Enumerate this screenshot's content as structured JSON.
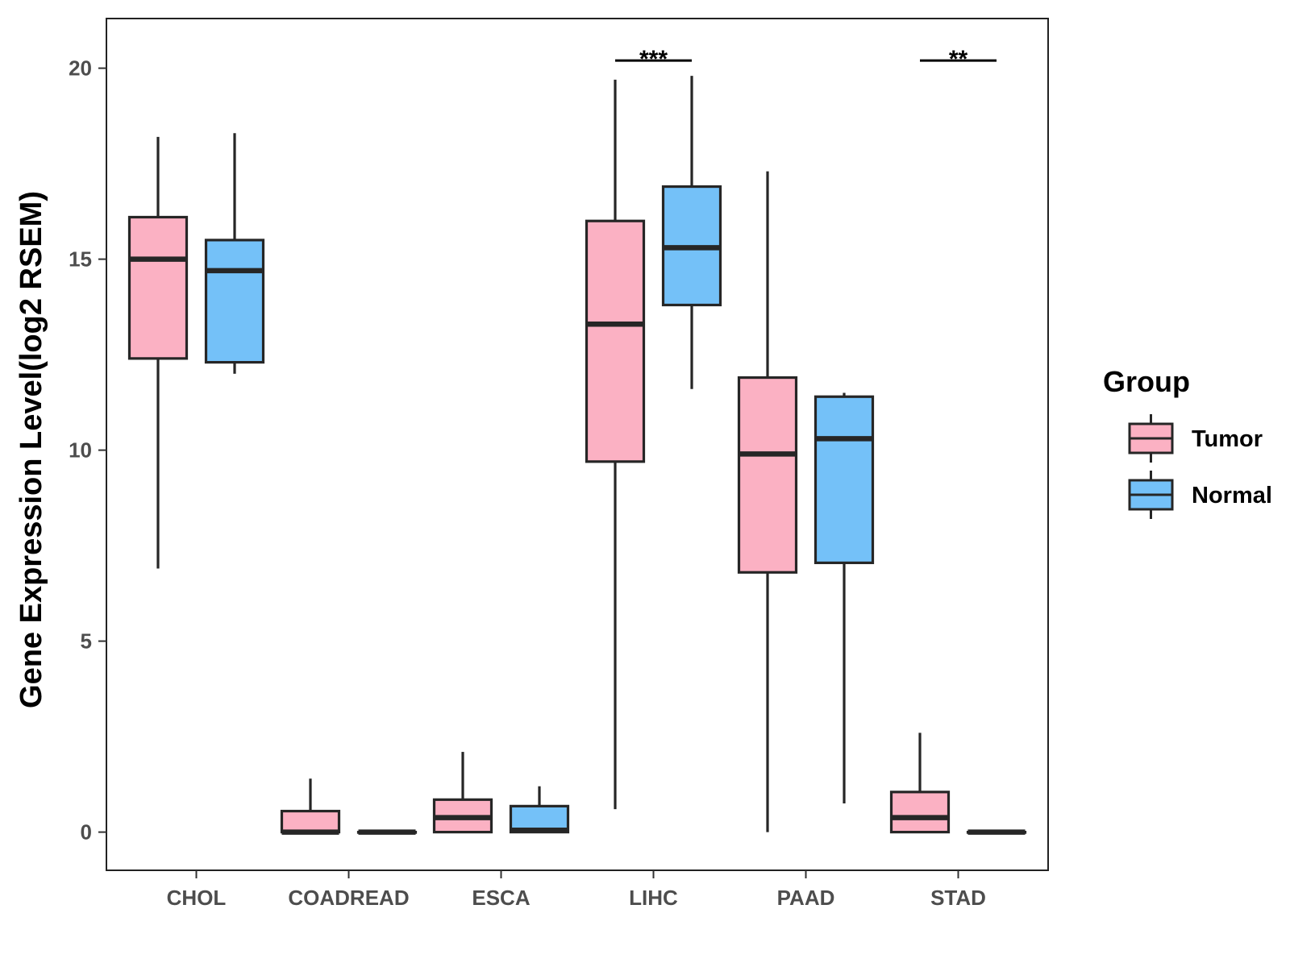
{
  "chart_data": {
    "type": "box",
    "ylabel": "Gene Expression Level(log2 RSEM)",
    "xlabel": "",
    "ylim": [
      -1,
      21.3
    ],
    "yticks": [
      0,
      5,
      10,
      15,
      20
    ],
    "categories": [
      "CHOL",
      "COADREAD",
      "ESCA",
      "LIHC",
      "PAAD",
      "STAD"
    ],
    "legend": {
      "title": "Group",
      "position": "right",
      "entries": [
        {
          "label": "Tumor",
          "color": "#FBB1C3"
        },
        {
          "label": "Normal",
          "color": "#74C1F8"
        }
      ]
    },
    "series": [
      {
        "name": "Tumor",
        "color": "#FBB1C3",
        "boxes": [
          {
            "category": "CHOL",
            "min": 6.9,
            "q1": 12.4,
            "median": 15.0,
            "q3": 16.1,
            "max": 18.2
          },
          {
            "category": "COADREAD",
            "min": 0.0,
            "q1": 0.0,
            "median": 0.0,
            "q3": 0.55,
            "max": 1.4
          },
          {
            "category": "ESCA",
            "min": 0.0,
            "q1": 0.0,
            "median": 0.38,
            "q3": 0.85,
            "max": 2.1
          },
          {
            "category": "LIHC",
            "min": 0.6,
            "q1": 9.7,
            "median": 13.3,
            "q3": 16.0,
            "max": 19.7
          },
          {
            "category": "PAAD",
            "min": 0.0,
            "q1": 6.8,
            "median": 9.9,
            "q3": 11.9,
            "max": 17.3
          },
          {
            "category": "STAD",
            "min": 0.0,
            "q1": 0.0,
            "median": 0.38,
            "q3": 1.05,
            "max": 2.6
          }
        ]
      },
      {
        "name": "Normal",
        "color": "#74C1F8",
        "boxes": [
          {
            "category": "CHOL",
            "min": 12.0,
            "q1": 12.3,
            "median": 14.7,
            "q3": 15.5,
            "max": 18.3
          },
          {
            "category": "COADREAD",
            "min": 0.0,
            "q1": 0.0,
            "median": 0.0,
            "q3": 0.0,
            "max": 0.0
          },
          {
            "category": "ESCA",
            "min": 0.0,
            "q1": 0.0,
            "median": 0.05,
            "q3": 0.68,
            "max": 1.2
          },
          {
            "category": "LIHC",
            "min": 11.6,
            "q1": 13.8,
            "median": 15.3,
            "q3": 16.9,
            "max": 19.8
          },
          {
            "category": "PAAD",
            "min": 0.75,
            "q1": 7.05,
            "median": 10.3,
            "q3": 11.4,
            "max": 11.5
          },
          {
            "category": "STAD",
            "min": 0.0,
            "q1": 0.0,
            "median": 0.0,
            "q3": 0.0,
            "max": 0.0
          }
        ]
      }
    ],
    "significance": [
      {
        "category": "LIHC",
        "label": "***",
        "y": 20.2
      },
      {
        "category": "STAD",
        "label": "**",
        "y": 20.2
      }
    ],
    "grid": false
  }
}
